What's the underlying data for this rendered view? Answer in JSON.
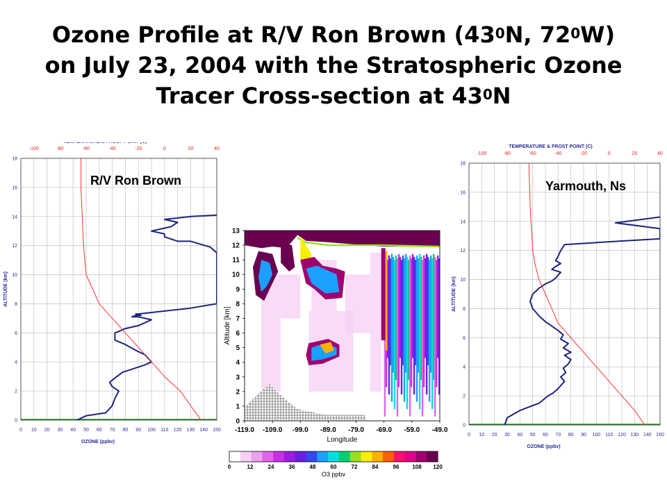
{
  "slide": {
    "title_line1_pre": "Ozone Profile at  R/V Ron Brown (43",
    "title_sup_a": "0",
    "title_line1_mid": "N, 72",
    "title_sup_b": "0",
    "title_line1_post": "W)",
    "title_line2": "on July 23, 2004 with the Stratospheric Ozone",
    "title_line3_pre": "Tracer Cross-section at 43",
    "title_sup_c": "0",
    "title_line3_post": "N"
  },
  "colors": {
    "ozone": "#1a237e",
    "temperature": "#ff3030",
    "frost_point": "#208020",
    "grid": "#c8c8c8",
    "axis_text": "#2a2a9a",
    "temp_axis_text": "#e02020",
    "text": "#000000"
  },
  "chart_data": [
    {
      "id": "left",
      "type": "line",
      "station": "R/V Ron Brown",
      "top_axis_title": "TEMPERATURE & FROST POINT (C)",
      "top_ticks": [
        "-100",
        "-80",
        "-60",
        "-40",
        "-20",
        "0",
        "20",
        "40"
      ],
      "xlabel": "OZONE (ppbv)",
      "ylabel": "ALTITUDE (km)",
      "xlim": [
        0,
        150
      ],
      "ylim": [
        0,
        18
      ],
      "templim": [
        -110,
        40
      ],
      "xticks": [
        "0",
        "10",
        "20",
        "30",
        "40",
        "50",
        "60",
        "70",
        "80",
        "90",
        "100",
        "110",
        "120",
        "130",
        "140",
        "150"
      ],
      "yticks": [
        "0",
        "2",
        "4",
        "6",
        "8",
        "10",
        "12",
        "14",
        "16",
        "18"
      ],
      "series": [
        {
          "kind": "ozone",
          "x": [
            43,
            50,
            65,
            70,
            72,
            75,
            70,
            68,
            72,
            78,
            85,
            95,
            100,
            98,
            95,
            88,
            80,
            72,
            72,
            72,
            75,
            80,
            90,
            95,
            100,
            95,
            90,
            85,
            88,
            92,
            88,
            90,
            100,
            110,
            130,
            150,
            150,
            150,
            145,
            130,
            120,
            110,
            110,
            100,
            105,
            115,
            120,
            110,
            130,
            150
          ],
          "y": [
            0,
            0.3,
            0.5,
            1,
            1.5,
            2,
            2.3,
            2.6,
            2.9,
            3.3,
            3.5,
            3.8,
            4,
            4.2,
            4.5,
            4.8,
            5.2,
            5.5,
            5.8,
            6,
            6.1,
            6.3,
            6.5,
            6.7,
            6.9,
            7,
            7.1,
            7.1,
            7.2,
            7.2,
            7.3,
            7.3,
            7.4,
            7.5,
            7.7,
            8,
            10,
            11.5,
            11.9,
            12.3,
            12.3,
            12.6,
            12.8,
            13,
            13.1,
            13.3,
            13.6,
            13.8,
            14,
            14.1
          ]
        },
        {
          "kind": "temperature",
          "x": [
            28,
            20,
            12,
            0,
            -10,
            -20,
            -30,
            -40,
            -50,
            -55,
            -60,
            -62,
            -63,
            -64,
            -64
          ],
          "y": [
            0,
            1,
            2,
            3,
            4,
            5,
            6,
            7,
            8,
            9,
            10,
            12,
            14,
            16,
            18
          ]
        }
      ]
    },
    {
      "id": "center",
      "type": "heatmap",
      "xlabel": "Longitude",
      "ylabel": "Altitude [km]",
      "xticks": [
        "-119.0",
        "-109.0",
        "-99.0",
        "-89.0",
        "-79.0",
        "-69.0",
        "-59.0",
        "-49.0"
      ],
      "yticks": [
        "0",
        "1",
        "2",
        "3",
        "4",
        "5",
        "6",
        "7",
        "8",
        "9",
        "10",
        "11",
        "12",
        "13"
      ],
      "xlim": [
        -119,
        -49
      ],
      "ylim": [
        0,
        13
      ],
      "colorbar_label": "O3 ppbv",
      "colorbar_ticks": [
        "0",
        "12",
        "24",
        "36",
        "48",
        "60",
        "72",
        "84",
        "96",
        "108",
        "120"
      ],
      "colorbar_colors": [
        "#ffffff",
        "#f6d0f4",
        "#ee9ff0",
        "#e264ec",
        "#c830e6",
        "#9a1de0",
        "#6a1ee0",
        "#3448f0",
        "#1aa0ff",
        "#00e0e0",
        "#00d070",
        "#9ae020",
        "#f8f000",
        "#ffb000",
        "#ff6000",
        "#ff1070",
        "#e0008a",
        "#a0006e",
        "#6a0050"
      ]
    },
    {
      "id": "right",
      "type": "line",
      "station": "Yarmouth, Ns",
      "top_axis_title": "TEMPERATURE & FROST POINT (C)",
      "top_ticks": [
        "-100",
        "-80",
        "-60",
        "-40",
        "-20",
        "0",
        "20",
        "40"
      ],
      "xlabel": "OZONE (ppbv)",
      "ylabel": "ALTITUDE (km)",
      "xlim": [
        0,
        150
      ],
      "ylim": [
        0,
        18
      ],
      "templim": [
        -110,
        40
      ],
      "xticks": [
        "0",
        "10",
        "20",
        "30",
        "40",
        "50",
        "60",
        "70",
        "80",
        "90",
        "100",
        "110",
        "120",
        "130",
        "140",
        "150"
      ],
      "yticks": [
        "0",
        "2",
        "4",
        "6",
        "8",
        "10",
        "12",
        "14",
        "16",
        "18"
      ],
      "series": [
        {
          "kind": "ozone",
          "x": [
            28,
            30,
            40,
            55,
            62,
            66,
            70,
            72,
            75,
            72,
            76,
            74,
            78,
            80,
            75,
            80,
            74,
            78,
            72,
            74,
            70,
            65,
            60,
            55,
            50,
            48,
            50,
            55,
            60,
            65,
            68,
            70,
            72,
            65,
            68,
            72,
            68,
            70,
            72,
            75,
            110,
            150,
            150,
            150,
            115,
            150
          ],
          "y": [
            0,
            0.5,
            1,
            1.5,
            2,
            2.2,
            2.5,
            2.7,
            3,
            3.3,
            3.6,
            3.9,
            4.2,
            4.5,
            4.8,
            5,
            5.3,
            5.6,
            5.9,
            6.2,
            6.5,
            6.8,
            7.1,
            7.5,
            8,
            8.5,
            9,
            9.4,
            9.7,
            9.9,
            10.1,
            10.3,
            10.5,
            10.7,
            10.9,
            11.1,
            11.3,
            11.6,
            12,
            12.4,
            12.6,
            12.8,
            13,
            13.5,
            13.9,
            14.3
          ]
        },
        {
          "kind": "temperature",
          "x": [
            28,
            20,
            10,
            0,
            -10,
            -20,
            -30,
            -40,
            -45,
            -50,
            -55,
            -58,
            -60,
            -62,
            -63
          ],
          "y": [
            0,
            1,
            2,
            3,
            4,
            5,
            6,
            7,
            8,
            9,
            10,
            11,
            12,
            15,
            18
          ]
        }
      ]
    }
  ]
}
